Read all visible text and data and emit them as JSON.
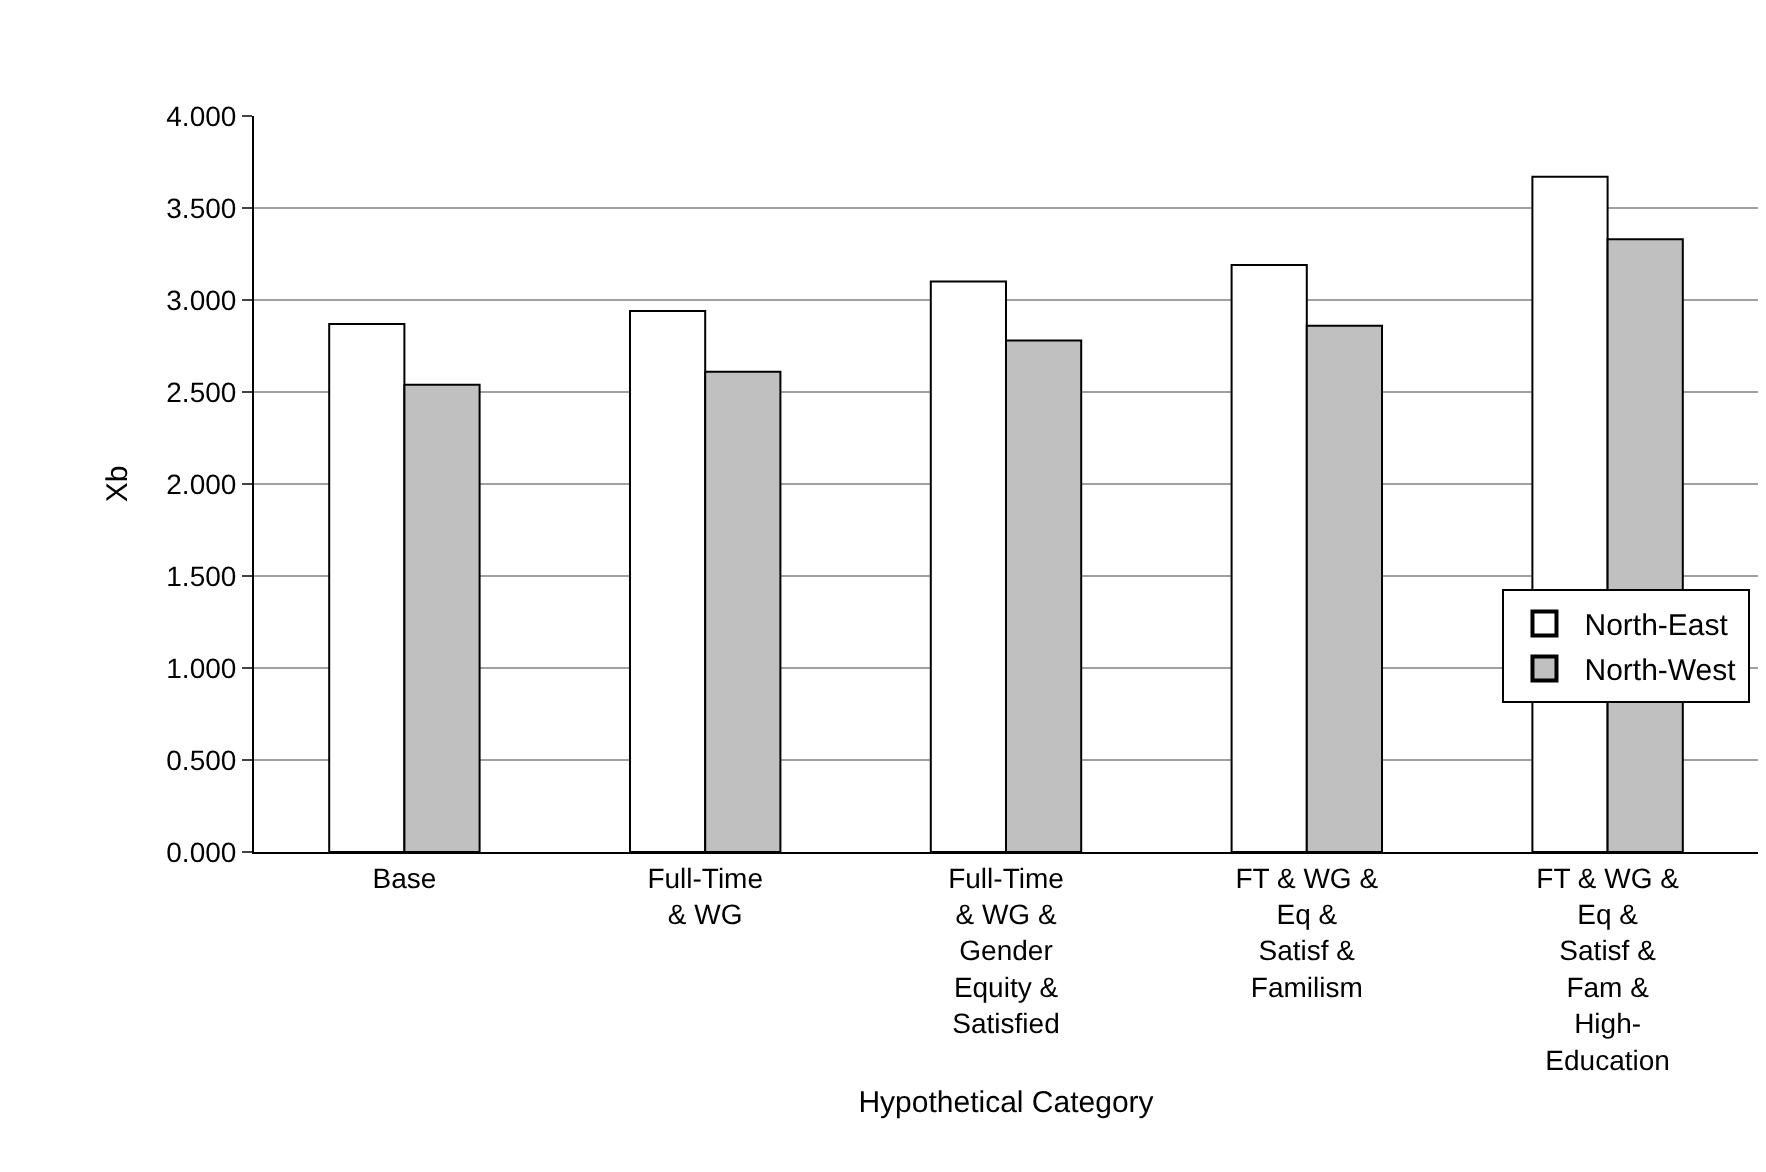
{
  "chart_data": {
    "type": "bar",
    "xlabel": "Hypothetical Category",
    "ylabel": "Xb",
    "categories": [
      "Base",
      "Full-Time & WG",
      "Full-Time & WG & Gender Equity & Satisfied",
      "FT & WG & Eq & Satisf & Familism",
      "FT & WG & Eq & Satisf & Fam & High-Education"
    ],
    "series": [
      {
        "name": "North-East",
        "color": "#ffffff",
        "values": [
          2.87,
          2.94,
          3.1,
          3.19,
          3.67
        ]
      },
      {
        "name": "North-West",
        "color": "#c0c0c0",
        "values": [
          2.54,
          2.61,
          2.78,
          2.86,
          3.33
        ]
      }
    ],
    "ylim": [
      0,
      4
    ],
    "yticks": [
      {
        "value": 0,
        "label": "0.000"
      },
      {
        "value": 0.5,
        "label": "0.500"
      },
      {
        "value": 1,
        "label": "1.000"
      },
      {
        "value": 1.5,
        "label": "1.500"
      },
      {
        "value": 2,
        "label": "2.000"
      },
      {
        "value": 2.5,
        "label": "2.500"
      },
      {
        "value": 3,
        "label": "3.000"
      },
      {
        "value": 3.5,
        "label": "3.500"
      },
      {
        "value": 4,
        "label": "4.000"
      }
    ],
    "grid": "y",
    "legend": "right"
  }
}
